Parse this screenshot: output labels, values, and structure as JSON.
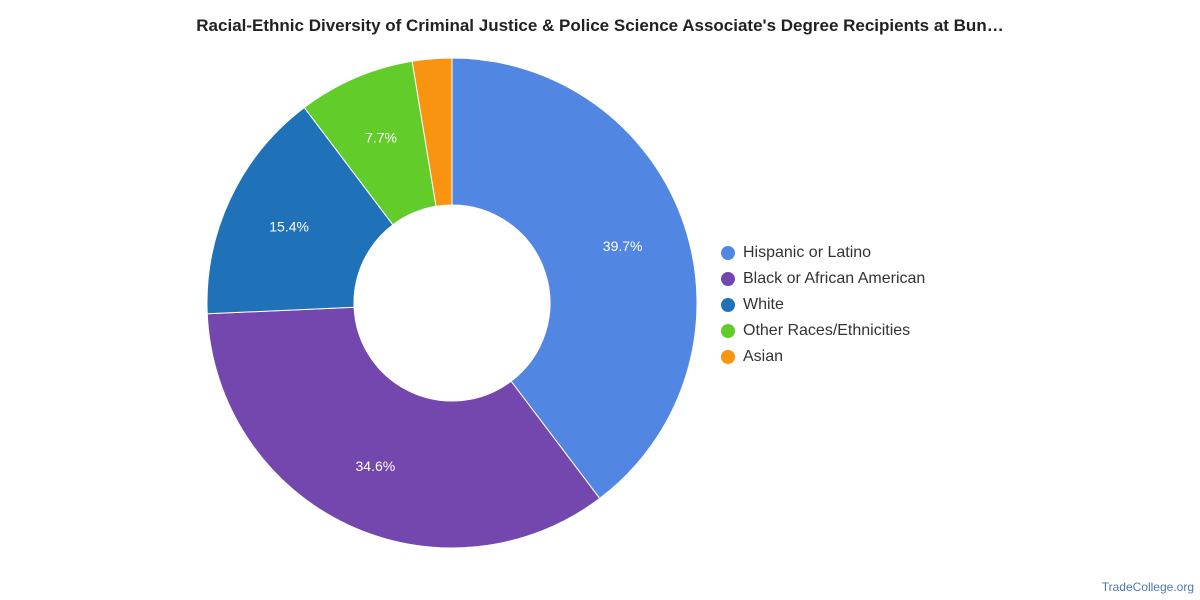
{
  "chart_data": {
    "type": "pie",
    "title": "Racial-Ethnic Diversity of Criminal Justice & Police Science Associate's Degree Recipients at Bun…",
    "donut": true,
    "legend_position": "right",
    "slices": [
      {
        "label": "Hispanic or Latino",
        "value": 39.7,
        "value_label": "39.7%",
        "color": "#5286e3"
      },
      {
        "label": "Black or African American",
        "value": 34.6,
        "value_label": "34.6%",
        "color": "#7447af"
      },
      {
        "label": "White",
        "value": 15.4,
        "value_label": "15.4%",
        "color": "#1f72b8"
      },
      {
        "label": "Other Races/Ethnicities",
        "value": 7.7,
        "value_label": "7.7%",
        "color": "#62cc2a"
      },
      {
        "label": "Asian",
        "value": 2.6,
        "value_label": "",
        "color": "#f8940f"
      }
    ]
  },
  "footer": {
    "source": "TradeCollege.org"
  }
}
